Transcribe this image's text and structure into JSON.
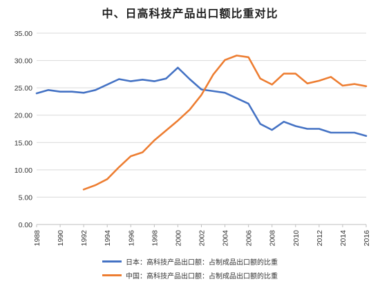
{
  "chart_data": {
    "type": "line",
    "title": "中、日高科技产品出口额比重对比",
    "xlabel": "",
    "ylabel": "",
    "ylim": [
      0,
      35
    ],
    "y_ticks": [
      "0.00",
      "5.00",
      "10.00",
      "15.00",
      "20.00",
      "25.00",
      "30.00",
      "35.00"
    ],
    "x_range": [
      1988,
      2016
    ],
    "x_ticks": [
      "1988",
      "1990",
      "1992",
      "1994",
      "1996",
      "1998",
      "2000",
      "2002",
      "2004",
      "2006",
      "2008",
      "2010",
      "2012",
      "2014",
      "2016"
    ],
    "grid": "horizontal",
    "legend_position": "bottom",
    "series": [
      {
        "name": "日本：高科技产品出口额：占制成品出口额的比重",
        "color": "#4472c4",
        "x": [
          1988,
          1989,
          1990,
          1991,
          1992,
          1993,
          1994,
          1995,
          1996,
          1997,
          1998,
          1999,
          2000,
          2001,
          2002,
          2003,
          2004,
          2005,
          2006,
          2007,
          2008,
          2009,
          2010,
          2011,
          2012,
          2013,
          2014,
          2015,
          2016
        ],
        "values": [
          24.0,
          24.6,
          24.3,
          24.3,
          24.1,
          24.6,
          25.6,
          26.6,
          26.2,
          26.5,
          26.2,
          26.7,
          28.7,
          26.6,
          24.7,
          24.4,
          24.1,
          23.1,
          22.1,
          18.4,
          17.3,
          18.8,
          18.0,
          17.5,
          17.5,
          16.8,
          16.8,
          16.8,
          16.2
        ]
      },
      {
        "name": "中国：高科技产品出口额：占制成品出口额的比重",
        "color": "#ed7d31",
        "x": [
          1992,
          1993,
          1994,
          1995,
          1996,
          1997,
          1998,
          1999,
          2000,
          2001,
          2002,
          2003,
          2004,
          2005,
          2006,
          2007,
          2008,
          2009,
          2010,
          2011,
          2012,
          2013,
          2014,
          2015,
          2016
        ],
        "values": [
          6.4,
          7.2,
          8.3,
          10.5,
          12.5,
          13.2,
          15.4,
          17.2,
          19.0,
          21.0,
          23.7,
          27.4,
          30.1,
          30.9,
          30.6,
          26.7,
          25.6,
          27.6,
          27.6,
          25.8,
          26.3,
          27.0,
          25.4,
          25.7,
          25.3
        ]
      }
    ]
  }
}
